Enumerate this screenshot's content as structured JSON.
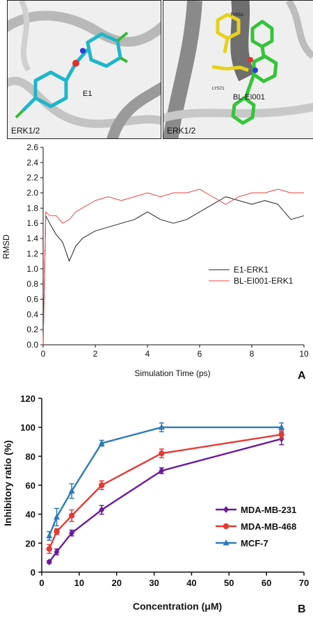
{
  "molecular_views": {
    "left": {
      "ligand_label": "E1",
      "protein_label": "ERK1/2"
    },
    "right": {
      "ligand_label": "BL-EI001",
      "protein_label": "ERK1/2",
      "residue_labels": [
        "TYR53",
        "LYS71"
      ]
    }
  },
  "chart_data": [
    {
      "panel_label": "A",
      "type": "line",
      "xlabel": "Simulation Time (ps)",
      "ylabel": "RMSD",
      "xlim": [
        0,
        10
      ],
      "ylim": [
        0.0,
        2.6
      ],
      "xticks": [
        0,
        2,
        4,
        6,
        8,
        10
      ],
      "yticks": [
        0.0,
        0.2,
        0.4,
        0.6,
        0.8,
        1.0,
        1.2,
        1.4,
        1.6,
        1.8,
        2.0,
        2.2,
        2.4,
        2.6
      ],
      "grid": false,
      "legend_position": "bottom-right",
      "x": [
        0,
        0.1,
        0.25,
        0.5,
        0.75,
        1.0,
        1.25,
        1.5,
        1.75,
        2.0,
        2.5,
        3.0,
        3.5,
        4.0,
        4.5,
        5.0,
        5.5,
        6.0,
        6.5,
        7.0,
        7.5,
        8.0,
        8.5,
        9.0,
        9.5,
        10.0
      ],
      "series": [
        {
          "name": "E1-ERK1",
          "color": "#222222",
          "values": [
            0.0,
            1.7,
            1.6,
            1.45,
            1.35,
            1.1,
            1.3,
            1.4,
            1.45,
            1.5,
            1.55,
            1.6,
            1.65,
            1.75,
            1.65,
            1.6,
            1.65,
            1.75,
            1.85,
            1.95,
            1.9,
            1.85,
            1.9,
            1.85,
            1.65,
            1.7
          ]
        },
        {
          "name": "BL-EI001-ERK1",
          "color": "#e8474c",
          "values": [
            0.0,
            1.75,
            1.7,
            1.7,
            1.6,
            1.65,
            1.75,
            1.8,
            1.85,
            1.9,
            1.95,
            1.9,
            1.95,
            2.0,
            1.95,
            2.0,
            2.0,
            2.05,
            1.95,
            1.85,
            1.95,
            2.0,
            2.0,
            2.05,
            2.0,
            2.0
          ]
        }
      ]
    },
    {
      "panel_label": "B",
      "type": "line",
      "xlabel": "Concentration (μM)",
      "ylabel": "Inhibitory ratio (%)",
      "xlim": [
        0,
        70
      ],
      "ylim": [
        0,
        120
      ],
      "xticks": [
        0,
        10,
        20,
        30,
        40,
        50,
        60,
        70
      ],
      "yticks": [
        0,
        20,
        40,
        60,
        80,
        100,
        120
      ],
      "grid": false,
      "legend_position": "right",
      "x": [
        2,
        4,
        8,
        16,
        32,
        64
      ],
      "series": [
        {
          "name": "MDA-MB-231",
          "color": "#6a1b9a",
          "marker": "diamond",
          "values": [
            7,
            14,
            27,
            43,
            70,
            92
          ],
          "errors": [
            1,
            2,
            2,
            3,
            2,
            4
          ]
        },
        {
          "name": "MDA-MB-468",
          "color": "#e53935",
          "marker": "circle",
          "values": [
            16,
            28,
            39,
            60,
            82,
            95
          ],
          "errors": [
            3,
            2,
            4,
            3,
            3,
            3
          ]
        },
        {
          "name": "MCF-7",
          "color": "#2e7bb4",
          "marker": "triangle",
          "values": [
            25,
            38,
            56,
            89,
            100,
            100
          ],
          "errors": [
            3,
            6,
            5,
            2,
            3,
            3
          ]
        }
      ]
    }
  ]
}
